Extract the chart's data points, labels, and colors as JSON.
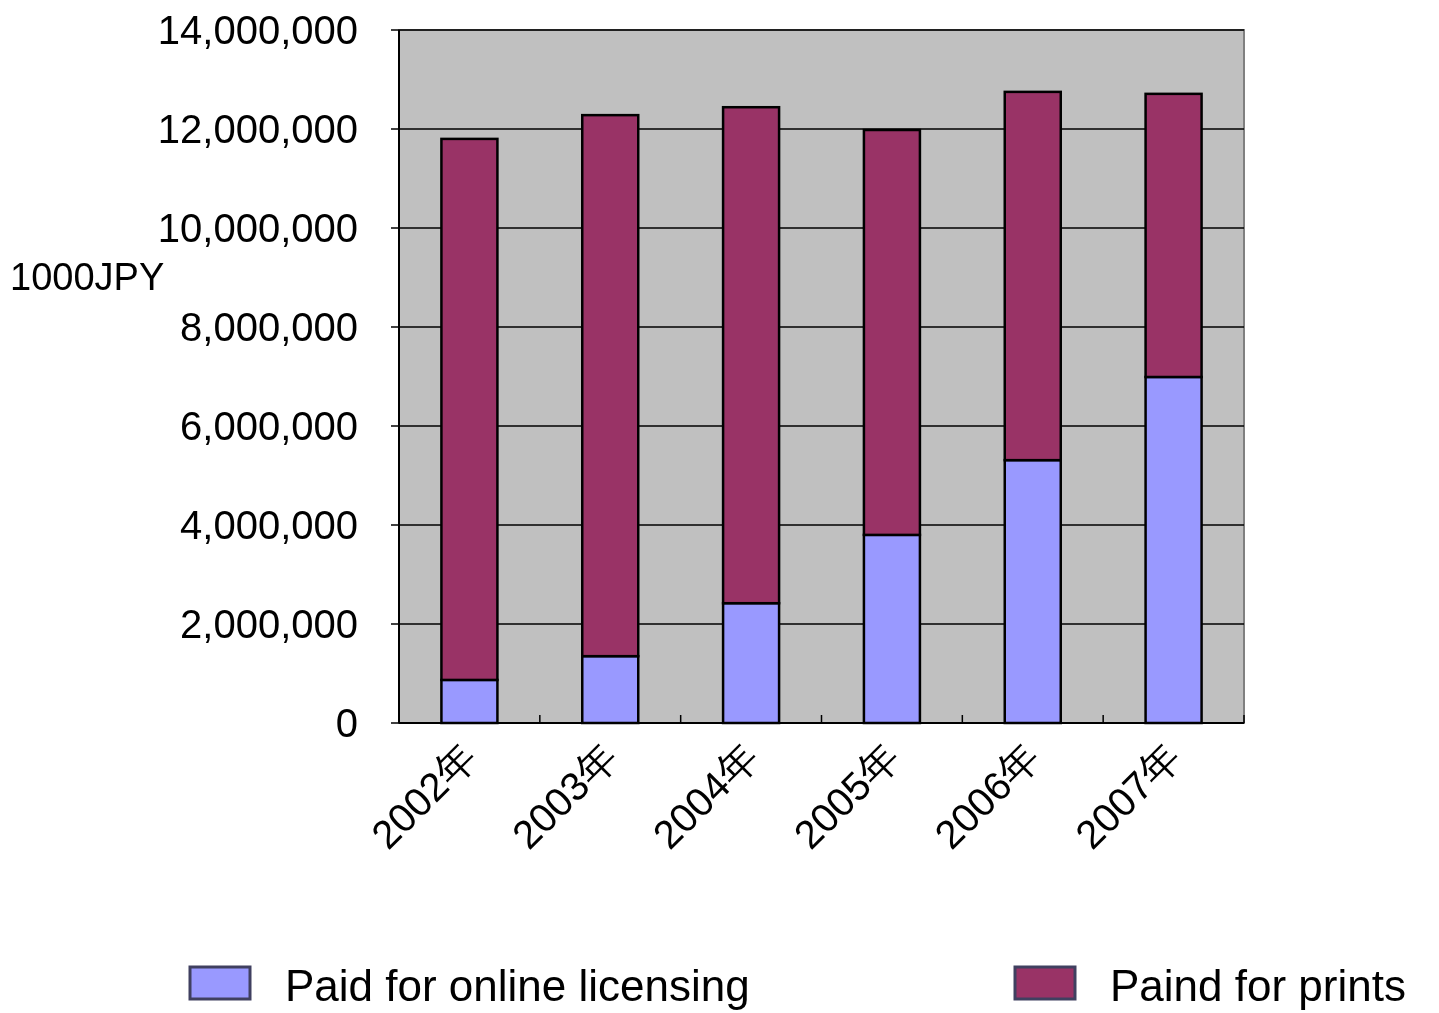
{
  "chart_data": {
    "type": "bar",
    "stacked": true,
    "ylabel": "1000JPY",
    "categories": [
      "2002年",
      "2003年",
      "2004年",
      "2005年",
      "2006年",
      "2007年"
    ],
    "series": [
      {
        "name": "Paid for online licensing",
        "color": "#9999ff",
        "values": [
          870000,
          1350000,
          2420000,
          3800000,
          5310000,
          6990000
        ]
      },
      {
        "name": "Paind for prints",
        "color": "#993366",
        "values": [
          10930000,
          10930000,
          10020000,
          8180000,
          7440000,
          5720000
        ]
      }
    ],
    "ylim": [
      0,
      14000000
    ],
    "yticks": [
      0,
      {
        "value": 2000000,
        "label": "2,000,000"
      },
      {
        "value": 4000000,
        "label": "4,000,000"
      },
      {
        "value": 6000000,
        "label": "6,000,000"
      },
      {
        "value": 8000000,
        "label": "8,000,000"
      },
      {
        "value": 10000000,
        "label": "10,000,000"
      },
      {
        "value": 12000000,
        "label": "12,000,000"
      },
      {
        "value": 14000000,
        "label": "14,000,000"
      }
    ],
    "grid": "y",
    "legend": "bottom"
  }
}
